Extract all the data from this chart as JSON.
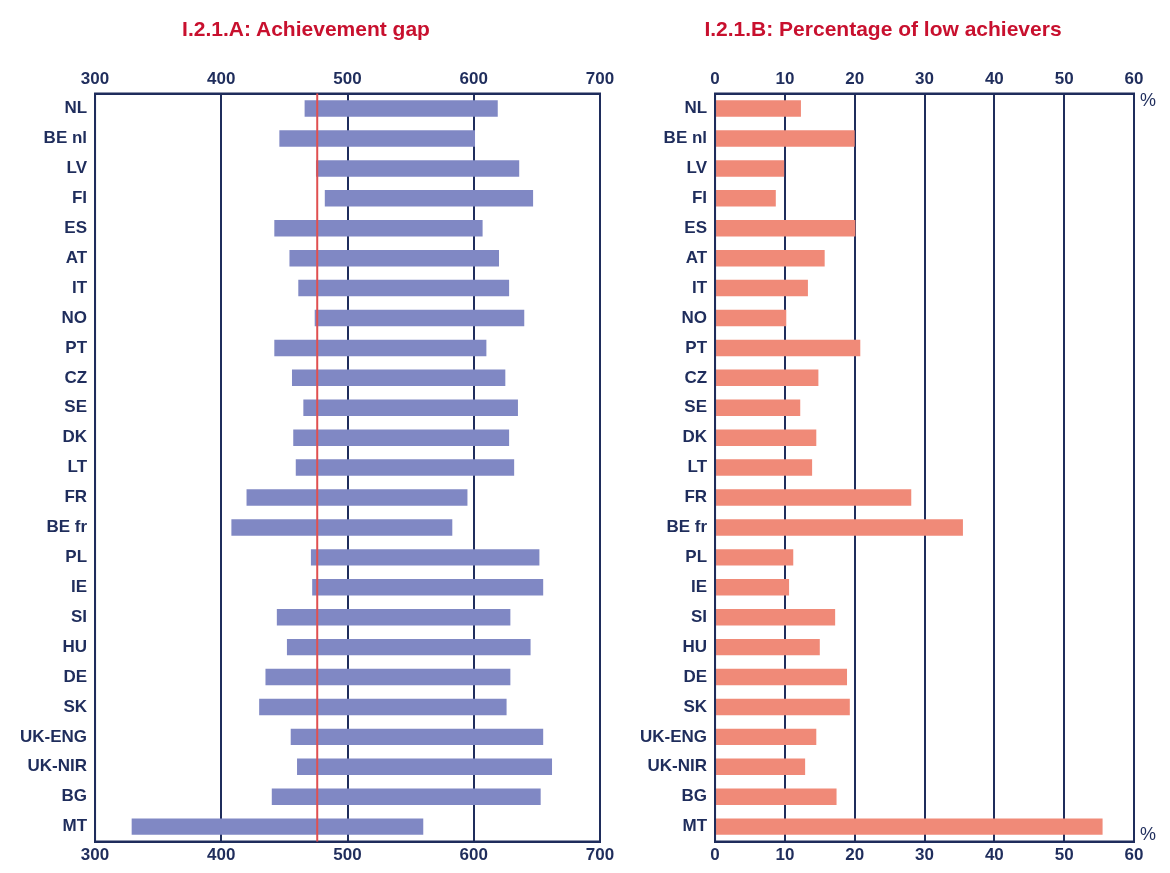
{
  "chart_data": [
    {
      "type": "bar",
      "orientation": "horizontal",
      "title": "I.2.1.A: Achievement gap",
      "categories": [
        "NL",
        "BE nl",
        "LV",
        "FI",
        "ES",
        "AT",
        "IT",
        "NO",
        "PT",
        "CZ",
        "SE",
        "DK",
        "LT",
        "FR",
        "BE fr",
        "PL",
        "IE",
        "SI",
        "HU",
        "DE",
        "SK",
        "UK-ENG",
        "UK-NIR",
        "BG",
        "MT"
      ],
      "series": [
        {
          "color": "#8088c4",
          "base": [
            466,
            446,
            475,
            482,
            442,
            454,
            461,
            474,
            442,
            456,
            465,
            457,
            459,
            420,
            408,
            471,
            472,
            444,
            452,
            435,
            430,
            455,
            460,
            440,
            329
          ],
          "values": [
            153,
            155,
            161,
            165,
            165,
            166,
            167,
            166,
            168,
            169,
            170,
            171,
            173,
            175,
            175,
            181,
            183,
            185,
            193,
            194,
            196,
            200,
            202,
            213,
            231
          ]
        }
      ],
      "xlim": [
        300,
        700
      ],
      "xticks": [
        300,
        400,
        500,
        600,
        700
      ],
      "x2lim": [
        300,
        700
      ],
      "x2ticks": [
        300,
        400,
        500,
        600,
        700
      ],
      "grid": "x",
      "ref_lines": [
        {
          "axis": "x",
          "value": 476,
          "color": "#e05050"
        }
      ]
    },
    {
      "type": "bar",
      "orientation": "horizontal",
      "title": "I.2.1.B: Percentage of low achievers",
      "categories": [
        "NL",
        "BE nl",
        "LV",
        "FI",
        "ES",
        "AT",
        "IT",
        "NO",
        "PT",
        "CZ",
        "SE",
        "DK",
        "LT",
        "FR",
        "BE fr",
        "PL",
        "IE",
        "SI",
        "HU",
        "DE",
        "SK",
        "UK-ENG",
        "UK-NIR",
        "BG",
        "MT"
      ],
      "series": [
        {
          "color": "#f08a78",
          "values": [
            12.3,
            20.0,
            9.9,
            8.7,
            20.1,
            15.7,
            13.3,
            10.2,
            20.8,
            14.8,
            12.2,
            14.5,
            13.9,
            28.1,
            35.5,
            11.2,
            10.6,
            17.2,
            15.0,
            18.9,
            19.3,
            14.5,
            12.9,
            17.4,
            55.5
          ]
        }
      ],
      "xlim": [
        0,
        60
      ],
      "xticks": [
        0,
        10,
        20,
        30,
        40,
        50,
        60
      ],
      "x2lim": [
        0,
        60
      ],
      "x2ticks": [
        0,
        10,
        20,
        30,
        40,
        50,
        60
      ],
      "grid": "x",
      "xlabel": "%",
      "x2label": "%"
    }
  ]
}
